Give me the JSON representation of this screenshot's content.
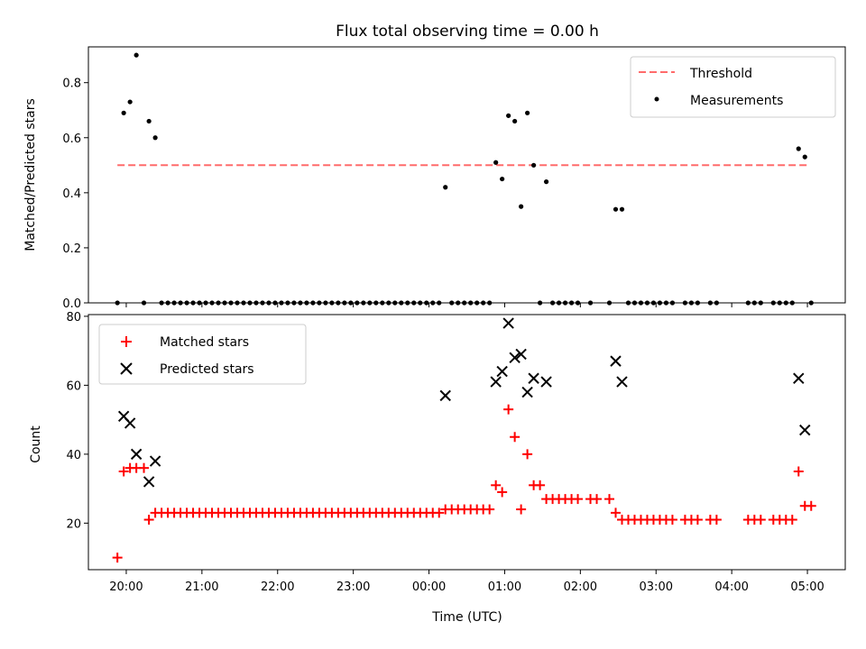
{
  "colors": {
    "threshold": "#ff6b6b",
    "measurements": "#000000",
    "matched": "#ff0000",
    "predicted": "#000000"
  },
  "chart_data": [
    {
      "type": "scatter",
      "title": "Flux total observing time = 0.00 h",
      "xlabel": "",
      "ylabel": "Matched/Predicted stars",
      "xlim": [
        "19:30",
        "05:30"
      ],
      "ylim": [
        0,
        0.93
      ],
      "yticks": [
        "0.0",
        "0.2",
        "0.4",
        "0.6",
        "0.8"
      ],
      "legend_position": "top-right",
      "threshold": {
        "name": "Threshold",
        "value": 0.5,
        "x_range": [
          "19:53",
          "05:00"
        ]
      },
      "series": [
        {
          "name": "Measurements",
          "marker": "dot",
          "points": [
            [
              "19:53",
              0
            ],
            [
              "19:58",
              0.69
            ],
            [
              "20:03",
              0.73
            ],
            [
              "20:08",
              0.9
            ],
            [
              "20:14",
              0
            ],
            [
              "20:18",
              0.66
            ],
            [
              "20:23",
              0.6
            ],
            [
              "20:28",
              0
            ],
            [
              "20:33",
              0
            ],
            [
              "20:38",
              0
            ],
            [
              "20:43",
              0
            ],
            [
              "20:48",
              0
            ],
            [
              "20:53",
              0
            ],
            [
              "20:58",
              0
            ],
            [
              "21:03",
              0
            ],
            [
              "21:08",
              0
            ],
            [
              "21:13",
              0
            ],
            [
              "21:18",
              0
            ],
            [
              "21:23",
              0
            ],
            [
              "21:28",
              0
            ],
            [
              "21:33",
              0
            ],
            [
              "21:38",
              0
            ],
            [
              "21:43",
              0
            ],
            [
              "21:48",
              0
            ],
            [
              "21:53",
              0
            ],
            [
              "21:58",
              0
            ],
            [
              "22:03",
              0
            ],
            [
              "22:08",
              0
            ],
            [
              "22:13",
              0
            ],
            [
              "22:18",
              0
            ],
            [
              "22:23",
              0
            ],
            [
              "22:28",
              0
            ],
            [
              "22:33",
              0
            ],
            [
              "22:38",
              0
            ],
            [
              "22:43",
              0
            ],
            [
              "22:48",
              0
            ],
            [
              "22:53",
              0
            ],
            [
              "22:58",
              0
            ],
            [
              "23:03",
              0
            ],
            [
              "23:08",
              0
            ],
            [
              "23:13",
              0
            ],
            [
              "23:18",
              0
            ],
            [
              "23:23",
              0
            ],
            [
              "23:28",
              0
            ],
            [
              "23:33",
              0
            ],
            [
              "23:38",
              0
            ],
            [
              "23:43",
              0
            ],
            [
              "23:48",
              0
            ],
            [
              "23:53",
              0
            ],
            [
              "23:58",
              0
            ],
            [
              "00:03",
              0
            ],
            [
              "00:08",
              0
            ],
            [
              "00:13",
              0.42
            ],
            [
              "00:18",
              0
            ],
            [
              "00:23",
              0
            ],
            [
              "00:28",
              0
            ],
            [
              "00:33",
              0
            ],
            [
              "00:38",
              0
            ],
            [
              "00:43",
              0
            ],
            [
              "00:48",
              0
            ],
            [
              "00:53",
              0.51
            ],
            [
              "00:58",
              0.45
            ],
            [
              "01:03",
              0.68
            ],
            [
              "01:08",
              0.66
            ],
            [
              "01:13",
              0.35
            ],
            [
              "01:18",
              0.69
            ],
            [
              "01:23",
              0.5
            ],
            [
              "01:28",
              0
            ],
            [
              "01:33",
              0.44
            ],
            [
              "01:38",
              0
            ],
            [
              "01:43",
              0
            ],
            [
              "01:48",
              0
            ],
            [
              "01:53",
              0
            ],
            [
              "01:58",
              0
            ],
            [
              "02:08",
              0
            ],
            [
              "02:23",
              0
            ],
            [
              "02:28",
              0.34
            ],
            [
              "02:33",
              0.34
            ],
            [
              "02:38",
              0
            ],
            [
              "02:43",
              0
            ],
            [
              "02:48",
              0
            ],
            [
              "02:53",
              0
            ],
            [
              "02:58",
              0
            ],
            [
              "03:03",
              0
            ],
            [
              "03:08",
              0
            ],
            [
              "03:13",
              0
            ],
            [
              "03:23",
              0
            ],
            [
              "03:28",
              0
            ],
            [
              "03:33",
              0
            ],
            [
              "03:43",
              0
            ],
            [
              "03:48",
              0
            ],
            [
              "04:13",
              0
            ],
            [
              "04:18",
              0
            ],
            [
              "04:23",
              0
            ],
            [
              "04:33",
              0
            ],
            [
              "04:38",
              0
            ],
            [
              "04:43",
              0
            ],
            [
              "04:48",
              0
            ],
            [
              "04:53",
              0.56
            ],
            [
              "04:58",
              0.53
            ],
            [
              "05:03",
              0
            ]
          ]
        }
      ]
    },
    {
      "type": "scatter",
      "title": "",
      "xlabel": "Time (UTC)",
      "ylabel": "Count",
      "xlim": [
        "19:30",
        "05:30"
      ],
      "ylim": [
        6.5,
        80.5
      ],
      "yticks": [
        "20",
        "40",
        "60",
        "80"
      ],
      "xticks": [
        "20:00",
        "21:00",
        "22:00",
        "23:00",
        "00:00",
        "01:00",
        "02:00",
        "03:00",
        "04:00",
        "05:00"
      ],
      "legend_position": "top-left",
      "series": [
        {
          "name": "Matched stars",
          "marker": "plus",
          "points": [
            [
              "19:53",
              10
            ],
            [
              "19:58",
              35
            ],
            [
              "20:03",
              36
            ],
            [
              "20:08",
              36
            ],
            [
              "20:14",
              36
            ],
            [
              "20:18",
              21
            ],
            [
              "20:23",
              23
            ],
            [
              "20:28",
              23
            ],
            [
              "20:33",
              23
            ],
            [
              "20:38",
              23
            ],
            [
              "20:43",
              23
            ],
            [
              "20:48",
              23
            ],
            [
              "20:53",
              23
            ],
            [
              "20:58",
              23
            ],
            [
              "21:03",
              23
            ],
            [
              "21:08",
              23
            ],
            [
              "21:13",
              23
            ],
            [
              "21:18",
              23
            ],
            [
              "21:23",
              23
            ],
            [
              "21:28",
              23
            ],
            [
              "21:33",
              23
            ],
            [
              "21:38",
              23
            ],
            [
              "21:43",
              23
            ],
            [
              "21:48",
              23
            ],
            [
              "21:53",
              23
            ],
            [
              "21:58",
              23
            ],
            [
              "22:03",
              23
            ],
            [
              "22:08",
              23
            ],
            [
              "22:13",
              23
            ],
            [
              "22:18",
              23
            ],
            [
              "22:23",
              23
            ],
            [
              "22:28",
              23
            ],
            [
              "22:33",
              23
            ],
            [
              "22:38",
              23
            ],
            [
              "22:43",
              23
            ],
            [
              "22:48",
              23
            ],
            [
              "22:53",
              23
            ],
            [
              "22:58",
              23
            ],
            [
              "23:03",
              23
            ],
            [
              "23:08",
              23
            ],
            [
              "23:13",
              23
            ],
            [
              "23:18",
              23
            ],
            [
              "23:23",
              23
            ],
            [
              "23:28",
              23
            ],
            [
              "23:33",
              23
            ],
            [
              "23:38",
              23
            ],
            [
              "23:43",
              23
            ],
            [
              "23:48",
              23
            ],
            [
              "23:53",
              23
            ],
            [
              "23:58",
              23
            ],
            [
              "00:03",
              23
            ],
            [
              "00:08",
              23
            ],
            [
              "00:13",
              24
            ],
            [
              "00:18",
              24
            ],
            [
              "00:23",
              24
            ],
            [
              "00:28",
              24
            ],
            [
              "00:33",
              24
            ],
            [
              "00:38",
              24
            ],
            [
              "00:43",
              24
            ],
            [
              "00:48",
              24
            ],
            [
              "00:53",
              31
            ],
            [
              "00:58",
              29
            ],
            [
              "01:03",
              53
            ],
            [
              "01:08",
              45
            ],
            [
              "01:13",
              24
            ],
            [
              "01:18",
              40
            ],
            [
              "01:23",
              31
            ],
            [
              "01:28",
              31
            ],
            [
              "01:33",
              27
            ],
            [
              "01:38",
              27
            ],
            [
              "01:43",
              27
            ],
            [
              "01:48",
              27
            ],
            [
              "01:53",
              27
            ],
            [
              "01:58",
              27
            ],
            [
              "02:08",
              27
            ],
            [
              "02:13",
              27
            ],
            [
              "02:23",
              27
            ],
            [
              "02:28",
              23
            ],
            [
              "02:33",
              21
            ],
            [
              "02:38",
              21
            ],
            [
              "02:43",
              21
            ],
            [
              "02:48",
              21
            ],
            [
              "02:53",
              21
            ],
            [
              "02:58",
              21
            ],
            [
              "03:03",
              21
            ],
            [
              "03:08",
              21
            ],
            [
              "03:13",
              21
            ],
            [
              "03:23",
              21
            ],
            [
              "03:28",
              21
            ],
            [
              "03:33",
              21
            ],
            [
              "03:43",
              21
            ],
            [
              "03:48",
              21
            ],
            [
              "04:13",
              21
            ],
            [
              "04:18",
              21
            ],
            [
              "04:23",
              21
            ],
            [
              "04:33",
              21
            ],
            [
              "04:38",
              21
            ],
            [
              "04:43",
              21
            ],
            [
              "04:48",
              21
            ],
            [
              "04:53",
              35
            ],
            [
              "04:58",
              25
            ],
            [
              "05:03",
              25
            ]
          ]
        },
        {
          "name": "Predicted stars",
          "marker": "x",
          "points": [
            [
              "19:58",
              51
            ],
            [
              "20:03",
              49
            ],
            [
              "20:08",
              40
            ],
            [
              "20:18",
              32
            ],
            [
              "20:23",
              38
            ],
            [
              "00:13",
              57
            ],
            [
              "00:53",
              61
            ],
            [
              "00:58",
              64
            ],
            [
              "01:03",
              78
            ],
            [
              "01:08",
              68
            ],
            [
              "01:13",
              69
            ],
            [
              "01:18",
              58
            ],
            [
              "01:23",
              62
            ],
            [
              "01:33",
              61
            ],
            [
              "02:28",
              67
            ],
            [
              "02:33",
              61
            ],
            [
              "04:53",
              62
            ],
            [
              "04:58",
              47
            ]
          ]
        }
      ]
    }
  ]
}
